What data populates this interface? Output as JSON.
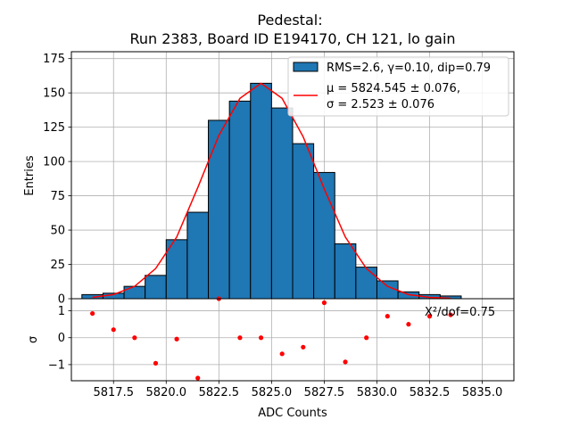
{
  "chart_data": [
    {
      "type": "bar",
      "title": "Pedestal:",
      "subtitle": "Run 2383, Board ID E194170, CH 121, lo gain",
      "ylabel": "Entries",
      "xlim": [
        5815.5,
        5836.5
      ],
      "ylim": [
        0,
        180
      ],
      "yticks": [
        "0",
        "25",
        "50",
        "75",
        "100",
        "125",
        "150",
        "175"
      ],
      "yticks_values": [
        0,
        25,
        50,
        75,
        100,
        125,
        150,
        175
      ],
      "grid": true,
      "legend_position": "top-right",
      "legend": {
        "hist_label": "RMS=2.6, γ=0.10, dip=0.79",
        "fit_label_line1": "μ = 5824.545 ± 0.076,",
        "fit_label_line2": "σ = 2.523 ± 0.076"
      },
      "bin_width": 1,
      "bin_centers": [
        5816.5,
        5817.5,
        5818.5,
        5819.5,
        5820.5,
        5821.5,
        5822.5,
        5823.5,
        5824.5,
        5825.5,
        5826.5,
        5827.5,
        5828.5,
        5829.5,
        5830.5,
        5831.5,
        5832.5,
        5833.5
      ],
      "values": [
        3,
        4,
        9,
        17,
        43,
        63,
        130,
        144,
        157,
        139,
        113,
        92,
        40,
        23,
        13,
        5,
        3,
        2
      ],
      "fit_curve": {
        "x": [
          5816.5,
          5817.5,
          5818.5,
          5819.5,
          5820.5,
          5821.5,
          5822.5,
          5823.5,
          5824.5,
          5825.5,
          5826.5,
          5827.5,
          5828.5,
          5829.5,
          5830.5,
          5831.5,
          5832.5,
          5833.5
        ],
        "y": [
          1,
          3,
          9,
          22,
          45,
          81,
          119,
          146,
          157,
          146,
          118,
          80,
          45,
          22,
          9,
          3,
          1,
          0.3
        ]
      },
      "colors": {
        "bar": "#1f77b4",
        "bar_edge": "#000000",
        "fit": "#ff0000"
      }
    },
    {
      "type": "scatter",
      "ylabel": "σ",
      "xlabel": "ADC Counts",
      "xlim": [
        5815.5,
        5836.5
      ],
      "ylim": [
        -1.6,
        1.45
      ],
      "xticks": [
        "5817.5",
        "5820.0",
        "5822.5",
        "5825.0",
        "5827.5",
        "5830.0",
        "5832.5",
        "5835.0"
      ],
      "xticks_values": [
        5817.5,
        5820.0,
        5822.5,
        5825.0,
        5827.5,
        5830.0,
        5832.5,
        5835.0
      ],
      "yticks": [
        "−1",
        "0",
        "1"
      ],
      "yticks_values": [
        -1,
        0,
        1
      ],
      "grid": true,
      "annotation": "Χ²/dof=0.75",
      "x": [
        5816.5,
        5817.5,
        5818.5,
        5819.5,
        5820.5,
        5821.5,
        5822.5,
        5823.5,
        5824.5,
        5825.5,
        5826.5,
        5827.5,
        5828.5,
        5829.5,
        5830.5,
        5831.5,
        5832.5,
        5833.5
      ],
      "y": [
        0.9,
        0.3,
        0.0,
        -0.95,
        -0.05,
        -1.5,
        1.45,
        0.0,
        0.0,
        -0.6,
        -0.35,
        1.3,
        -0.9,
        0.0,
        0.8,
        0.5,
        0.8,
        0.85
      ],
      "colors": {
        "point": "#ff0000"
      }
    }
  ]
}
